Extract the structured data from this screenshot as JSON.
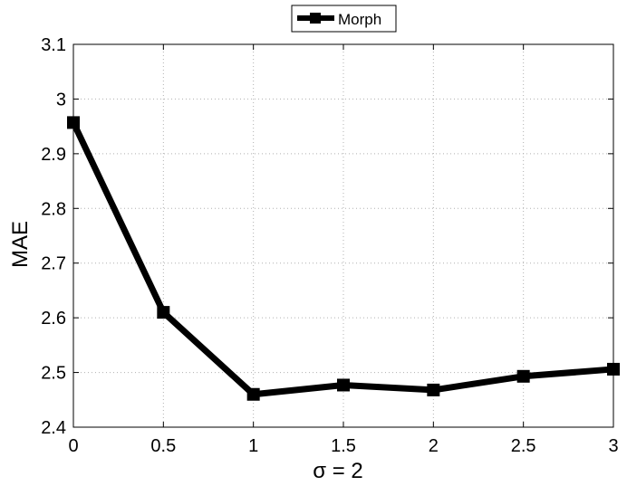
{
  "chart_data": {
    "type": "line",
    "title": "",
    "xlabel": "σ = 2",
    "ylabel": "MAE",
    "xlim": [
      0,
      3
    ],
    "ylim": [
      2.4,
      3.1
    ],
    "xticks": [
      0,
      0.5,
      1,
      1.5,
      2,
      2.5,
      3
    ],
    "xtick_labels": [
      "0",
      "0.5",
      "1",
      "1.5",
      "2",
      "2.5",
      "3"
    ],
    "yticks": [
      2.4,
      2.5,
      2.6,
      2.7,
      2.8,
      2.9,
      3.0,
      3.1
    ],
    "ytick_labels": [
      "2.4",
      "2.5",
      "2.6",
      "2.7",
      "2.8",
      "2.9",
      "3",
      "3.1"
    ],
    "grid": true,
    "legend_position": "top-center-outside",
    "series": [
      {
        "name": "Morph",
        "color": "#000000",
        "marker": "square",
        "x": [
          0,
          0.5,
          1,
          1.5,
          2,
          2.5,
          3
        ],
        "y": [
          2.957,
          2.61,
          2.46,
          2.477,
          2.468,
          2.493,
          2.506
        ]
      }
    ]
  }
}
